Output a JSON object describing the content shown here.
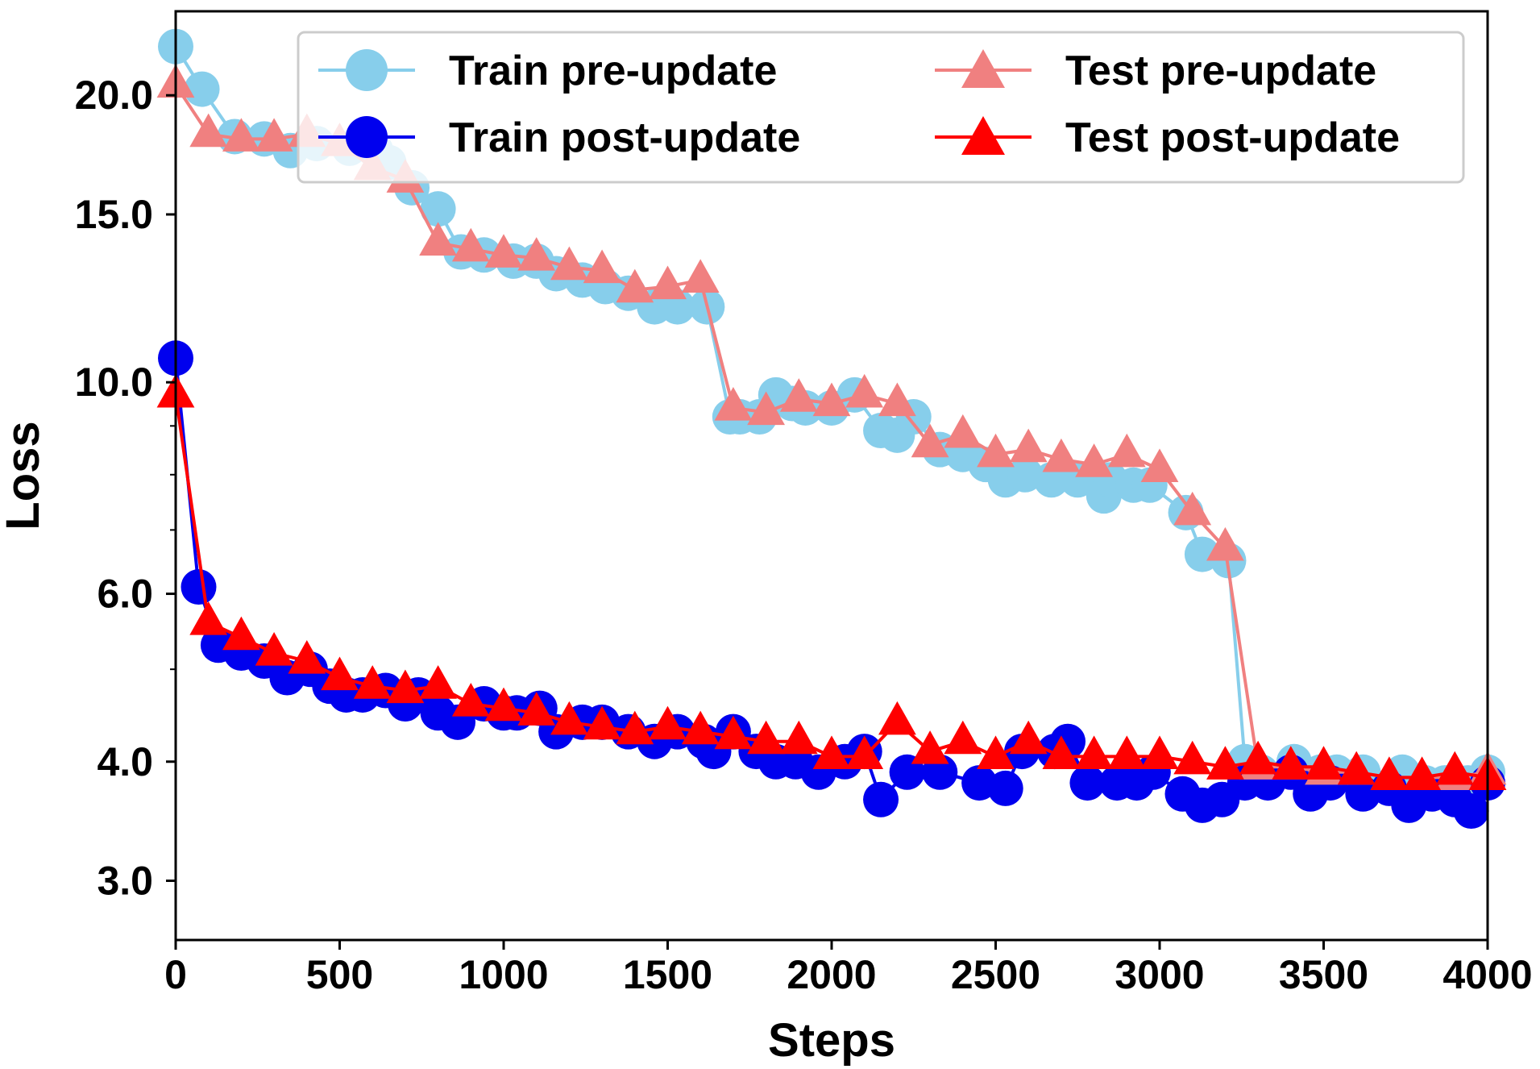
{
  "chart_data": {
    "type": "line",
    "title": "",
    "xlabel": "Steps",
    "ylabel": "Loss",
    "yscale": "log",
    "xlim": [
      0,
      4000
    ],
    "ylim": [
      2.6,
      24.5
    ],
    "xticks": [
      0,
      500,
      1000,
      1500,
      2000,
      2500,
      3000,
      3500,
      4000
    ],
    "xtick_labels": [
      "0",
      "500",
      "1000",
      "1500",
      "2000",
      "2500",
      "3000",
      "3500",
      "4000"
    ],
    "yticks": [
      3.0,
      4.0,
      6.0,
      10.0,
      15.0,
      20.0
    ],
    "ytick_labels": [
      "3.0",
      "4.0",
      "6.0",
      "10.0",
      "15.0",
      "20.0"
    ],
    "grid": false,
    "legend_position": "top-right",
    "series": [
      {
        "name": "Train pre-update",
        "color": "#87ceeb",
        "marker": "circle",
        "x": [
          0,
          80,
          180,
          270,
          350,
          430,
          530,
          610,
          650,
          720,
          800,
          870,
          940,
          1030,
          1100,
          1160,
          1240,
          1310,
          1380,
          1460,
          1530,
          1620,
          1690,
          1720,
          1780,
          1830,
          1880,
          1920,
          2000,
          2070,
          2150,
          2200,
          2250,
          2330,
          2400,
          2470,
          2530,
          2590,
          2670,
          2750,
          2830,
          2850,
          2920,
          2970,
          3080,
          3130,
          3210,
          3260,
          3310,
          3410,
          3490,
          3540,
          3620,
          3740,
          3810,
          3870,
          3940,
          4000
        ],
        "y": [
          22.5,
          20.3,
          18.1,
          18.0,
          17.5,
          17.8,
          17.6,
          17.5,
          17.0,
          16.0,
          15.2,
          13.7,
          13.6,
          13.4,
          13.4,
          13.0,
          12.8,
          12.6,
          12.4,
          12.0,
          12.0,
          12.0,
          9.2,
          9.2,
          9.2,
          9.7,
          9.5,
          9.4,
          9.4,
          9.7,
          8.9,
          8.8,
          9.2,
          8.5,
          8.4,
          8.2,
          7.9,
          8.0,
          7.9,
          7.9,
          7.6,
          7.9,
          7.8,
          7.8,
          7.3,
          6.6,
          6.5,
          4.0,
          3.9,
          4.0,
          3.9,
          3.9,
          3.9,
          3.9,
          3.8,
          3.8,
          3.8,
          3.9
        ]
      },
      {
        "name": "Train post-update",
        "color": "#0000ee",
        "marker": "circle",
        "x": [
          0,
          70,
          130,
          200,
          270,
          340,
          410,
          470,
          520,
          570,
          640,
          700,
          740,
          800,
          860,
          940,
          1000,
          1040,
          1110,
          1160,
          1240,
          1300,
          1380,
          1460,
          1530,
          1610,
          1640,
          1700,
          1770,
          1830,
          1890,
          1960,
          2040,
          2100,
          2150,
          2230,
          2330,
          2450,
          2530,
          2580,
          2680,
          2720,
          2780,
          2870,
          2930,
          2980,
          3070,
          3130,
          3190,
          3260,
          3330,
          3400,
          3460,
          3520,
          3620,
          3700,
          3760,
          3830,
          3900,
          3950,
          4000
        ],
        "y": [
          10.6,
          6.1,
          5.3,
          5.2,
          5.1,
          4.9,
          5.0,
          4.8,
          4.7,
          4.7,
          4.75,
          4.6,
          4.7,
          4.5,
          4.4,
          4.6,
          4.5,
          4.5,
          4.55,
          4.3,
          4.4,
          4.4,
          4.3,
          4.2,
          4.3,
          4.2,
          4.1,
          4.3,
          4.1,
          4.0,
          4.0,
          3.9,
          4.0,
          4.1,
          3.65,
          3.9,
          3.9,
          3.8,
          3.75,
          4.1,
          4.1,
          4.2,
          3.8,
          3.8,
          3.8,
          3.9,
          3.7,
          3.6,
          3.65,
          3.8,
          3.8,
          3.9,
          3.7,
          3.8,
          3.7,
          3.75,
          3.6,
          3.7,
          3.65,
          3.55,
          3.8
        ]
      },
      {
        "name": "Test pre-update",
        "color": "#f08080",
        "marker": "triangle",
        "x": [
          0,
          100,
          200,
          300,
          400,
          500,
          600,
          700,
          800,
          900,
          1000,
          1100,
          1200,
          1300,
          1400,
          1500,
          1600,
          1700,
          1800,
          1900,
          2000,
          2100,
          2200,
          2300,
          2400,
          2500,
          2600,
          2700,
          2800,
          2900,
          3000,
          3100,
          3200,
          3300,
          3400,
          3500,
          3600,
          3700,
          3800,
          3900,
          4000
        ],
        "y": [
          20.5,
          18.2,
          18.0,
          18.0,
          18.2,
          17.8,
          16.8,
          16.3,
          14.0,
          13.8,
          13.6,
          13.5,
          13.2,
          13.1,
          12.5,
          12.6,
          12.8,
          9.4,
          9.3,
          9.6,
          9.5,
          9.7,
          9.5,
          8.6,
          8.8,
          8.4,
          8.5,
          8.3,
          8.2,
          8.4,
          8.1,
          7.3,
          6.7,
          3.95,
          3.95,
          3.9,
          3.9,
          3.85,
          3.85,
          3.85,
          3.9
        ]
      },
      {
        "name": "Test post-update",
        "color": "#ff0000",
        "marker": "triangle",
        "x": [
          0,
          100,
          200,
          300,
          400,
          500,
          600,
          700,
          800,
          900,
          1000,
          1100,
          1200,
          1300,
          1400,
          1500,
          1600,
          1700,
          1800,
          1900,
          2000,
          2100,
          2200,
          2300,
          2400,
          2500,
          2600,
          2700,
          2800,
          2900,
          3000,
          3100,
          3200,
          3300,
          3400,
          3500,
          3600,
          3700,
          3800,
          3900,
          4000
        ],
        "y": [
          9.7,
          5.6,
          5.4,
          5.2,
          5.1,
          4.9,
          4.8,
          4.75,
          4.8,
          4.6,
          4.55,
          4.5,
          4.4,
          4.35,
          4.3,
          4.35,
          4.3,
          4.25,
          4.2,
          4.2,
          4.05,
          4.05,
          4.4,
          4.1,
          4.2,
          4.05,
          4.2,
          4.05,
          4.05,
          4.05,
          4.05,
          4.0,
          3.95,
          4.0,
          3.95,
          3.95,
          3.9,
          3.85,
          3.85,
          3.9,
          3.85
        ]
      }
    ]
  }
}
